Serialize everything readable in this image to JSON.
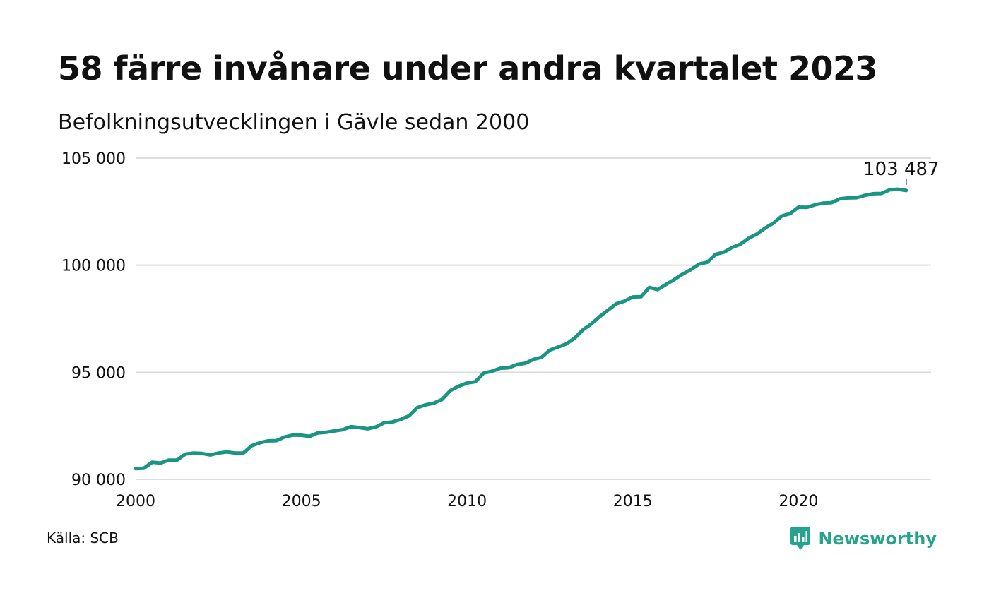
{
  "title": "58 färre invånare under andra kvartalet 2023",
  "subtitle": "Befolkningsutvecklingen i Gävle sedan 2000",
  "source": "Källa: SCB",
  "brand": "Newsworthy",
  "colors": {
    "line": "#1a9583",
    "grid": "#dddddd",
    "brand": "#26a38d"
  },
  "icons": {
    "brand_logo": "newsworthy-logo-icon"
  },
  "chart_data": {
    "type": "line",
    "title": "58 färre invånare under andra kvartalet 2023",
    "subtitle": "Befolkningsutvecklingen i Gävle sedan 2000",
    "xlabel": "",
    "ylabel": "",
    "xlim": [
      2000,
      2024
    ],
    "ylim": [
      90000,
      105000
    ],
    "x_ticks": [
      2000,
      2005,
      2010,
      2015,
      2020
    ],
    "y_ticks": [
      90000,
      95000,
      100000,
      105000
    ],
    "y_tick_labels": [
      "90 000",
      "95 000",
      "100 000",
      "105 000"
    ],
    "grid": "horizontal",
    "last_value_label": "103 487",
    "x": [
      2000.0,
      2000.25,
      2000.5,
      2000.75,
      2001.0,
      2001.25,
      2001.5,
      2001.75,
      2002.0,
      2002.25,
      2002.5,
      2002.75,
      2003.0,
      2003.25,
      2003.5,
      2003.75,
      2004.0,
      2004.25,
      2004.5,
      2004.75,
      2005.0,
      2005.25,
      2005.5,
      2005.75,
      2006.0,
      2006.25,
      2006.5,
      2006.75,
      2007.0,
      2007.25,
      2007.5,
      2007.75,
      2008.0,
      2008.25,
      2008.5,
      2008.75,
      2009.0,
      2009.25,
      2009.5,
      2009.75,
      2010.0,
      2010.25,
      2010.5,
      2010.75,
      2011.0,
      2011.25,
      2011.5,
      2011.75,
      2012.0,
      2012.25,
      2012.5,
      2012.75,
      2013.0,
      2013.25,
      2013.5,
      2013.75,
      2014.0,
      2014.25,
      2014.5,
      2014.75,
      2015.0,
      2015.25,
      2015.5,
      2015.75,
      2016.0,
      2016.25,
      2016.5,
      2016.75,
      2017.0,
      2017.25,
      2017.5,
      2017.75,
      2018.0,
      2018.25,
      2018.5,
      2018.75,
      2019.0,
      2019.25,
      2019.5,
      2019.75,
      2020.0,
      2020.25,
      2020.5,
      2020.75,
      2021.0,
      2021.25,
      2021.5,
      2021.75,
      2022.0,
      2022.25,
      2022.5,
      2022.75,
      2023.0,
      2023.25
    ],
    "series": [
      {
        "values": [
          90500,
          90520,
          90800,
          90760,
          90900,
          90900,
          91180,
          91230,
          91210,
          91140,
          91230,
          91280,
          91230,
          91230,
          91570,
          91710,
          91800,
          91810,
          91980,
          92070,
          92060,
          92010,
          92170,
          92200,
          92260,
          92320,
          92460,
          92420,
          92360,
          92450,
          92640,
          92680,
          92800,
          92970,
          93350,
          93480,
          93560,
          93740,
          94150,
          94350,
          94500,
          94560,
          94960,
          95050,
          95190,
          95210,
          95360,
          95420,
          95600,
          95700,
          96040,
          96180,
          96330,
          96600,
          96990,
          97260,
          97600,
          97900,
          98200,
          98320,
          98520,
          98530,
          98960,
          98860,
          99100,
          99330,
          99580,
          99790,
          100050,
          100140,
          100510,
          100610,
          100830,
          100980,
          101260,
          101460,
          101740,
          101970,
          102300,
          102410,
          102710,
          102700,
          102820,
          102900,
          102920,
          103100,
          103140,
          103150,
          103260,
          103340,
          103350,
          103520,
          103545,
          103487
        ]
      }
    ]
  }
}
